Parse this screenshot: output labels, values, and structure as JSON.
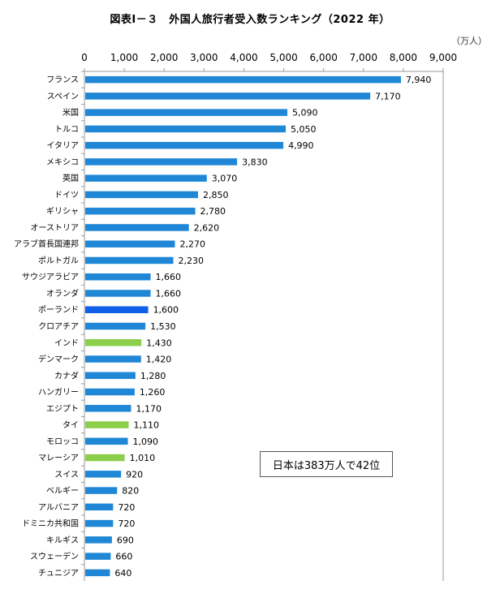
{
  "title": "図表Ⅰ－３　外国人旅行者受入数ランキング（2022 年）",
  "unit_label": "（万人）",
  "note": "日本は383万人で42位",
  "colors": {
    "default": "#1f87d6",
    "highlight_blue": "#0f5fe8",
    "highlight_green": "#8ccf4a",
    "axis": "#999999"
  },
  "chart_data": {
    "type": "bar",
    "orientation": "horizontal",
    "xlim": [
      0,
      9000
    ],
    "xticks": [
      "0",
      "1,000",
      "2,000",
      "3,000",
      "4,000",
      "5,000",
      "6,000",
      "7,000",
      "8,000",
      "9,000"
    ],
    "categories": [
      "フランス",
      "スペイン",
      "米国",
      "トルコ",
      "イタリア",
      "メキシコ",
      "英国",
      "ドイツ",
      "ギリシャ",
      "オーストリア",
      "アラブ首長国連邦",
      "ポルトガル",
      "サウジアラビア",
      "オランダ",
      "ポーランド",
      "クロアチア",
      "インド",
      "デンマーク",
      "カナダ",
      "ハンガリー",
      "エジプト",
      "タイ",
      "モロッコ",
      "マレーシア",
      "スイス",
      "ベルギー",
      "アルバニア",
      "ドミニカ共和国",
      "キルギス",
      "スウェーデン",
      "チュニジア"
    ],
    "values": [
      7940,
      7170,
      5090,
      5050,
      4990,
      3830,
      3070,
      2850,
      2780,
      2620,
      2270,
      2230,
      1660,
      1660,
      1600,
      1530,
      1430,
      1420,
      1280,
      1260,
      1170,
      1110,
      1090,
      1010,
      920,
      820,
      720,
      720,
      690,
      660,
      640
    ],
    "value_labels": [
      "7,940",
      "7,170",
      "5,090",
      "5,050",
      "4,990",
      "3,830",
      "3,070",
      "2,850",
      "2,780",
      "2,620",
      "2,270",
      "2,230",
      "1,660",
      "1,660",
      "1,600",
      "1,530",
      "1,430",
      "1,420",
      "1,280",
      "1,260",
      "1,170",
      "1,110",
      "1,090",
      "1,010",
      "920",
      "820",
      "720",
      "720",
      "690",
      "660",
      "640"
    ],
    "bar_colors": [
      "default",
      "default",
      "default",
      "default",
      "default",
      "default",
      "default",
      "default",
      "default",
      "default",
      "default",
      "default",
      "default",
      "default",
      "highlight_blue",
      "default",
      "highlight_green",
      "default",
      "default",
      "default",
      "default",
      "highlight_green",
      "default",
      "highlight_green",
      "default",
      "default",
      "default",
      "default",
      "default",
      "default",
      "default"
    ],
    "grid": false
  }
}
